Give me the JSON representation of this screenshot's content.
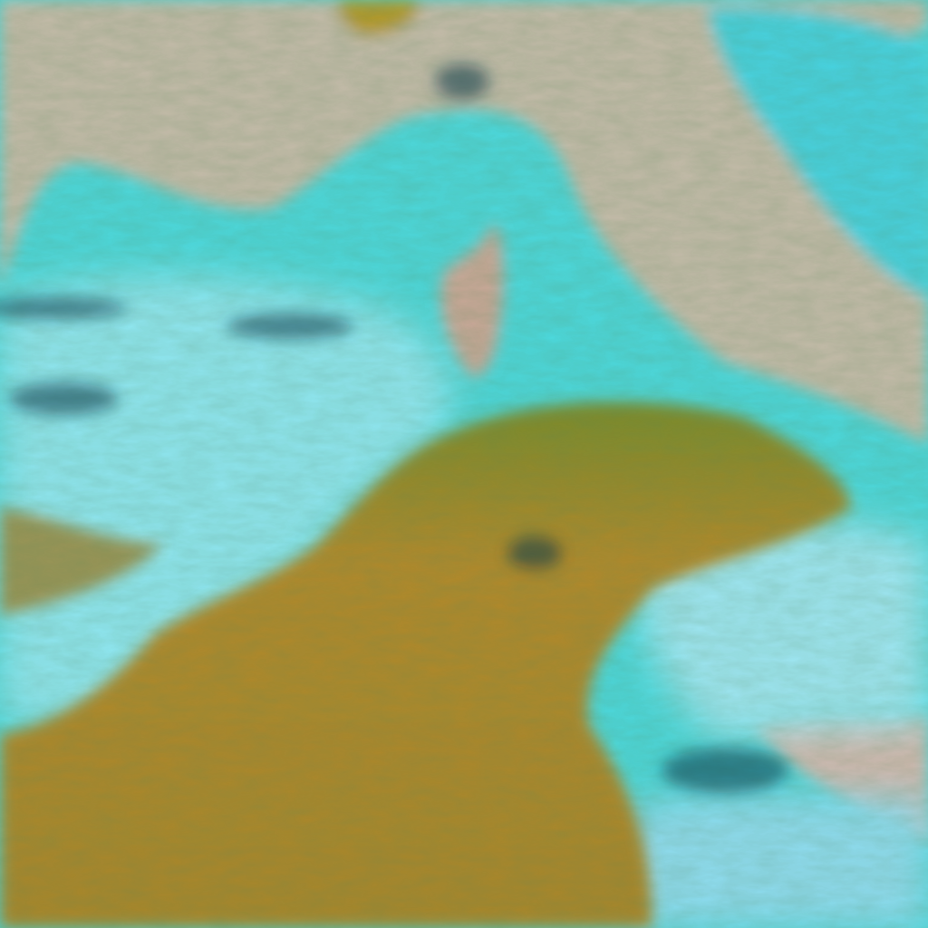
{
  "image": {
    "kind": "false-color satellite imagery",
    "colors": {
      "land": "#c9b7a6",
      "sea": "#3fd6dc",
      "cloud_ice": "#9fe8f0",
      "cloud_dust": "#b2892a",
      "cloud_edge": "#2f7a35",
      "shadow": "#0b3a4a"
    },
    "regions": [
      "northern-landmass",
      "sea",
      "island",
      "eastern-peninsula",
      "southern-cloud-mass",
      "western-cloud-bands",
      "eastern-cloud-patch"
    ]
  }
}
